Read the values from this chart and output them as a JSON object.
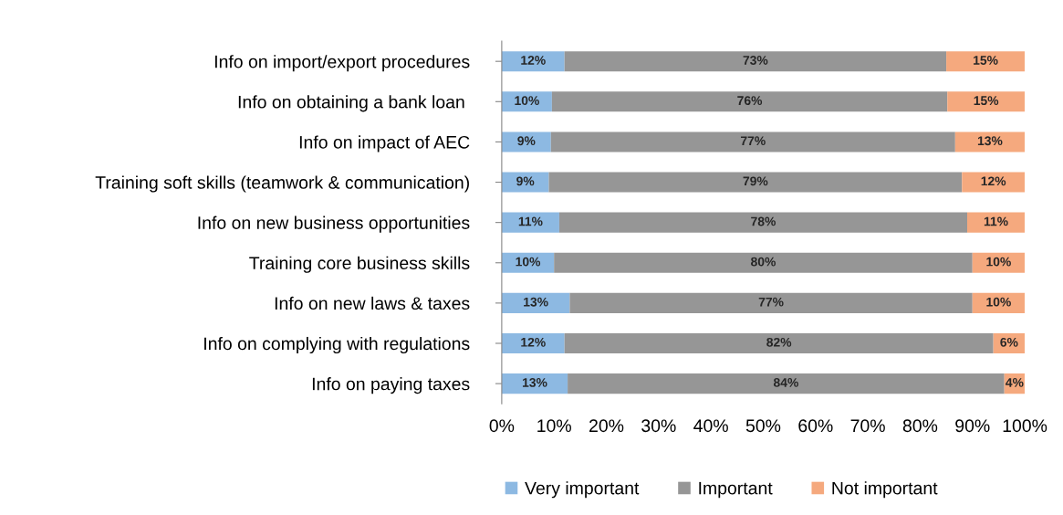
{
  "chart_data": {
    "type": "bar",
    "orientation": "horizontal",
    "stacked": true,
    "categories": [
      "Info on import/export procedures",
      "Info on obtaining a bank loan ",
      "Info on impact of AEC",
      "Training soft skills (teamwork & communication)",
      "Info on new business opportunities",
      "Training core business skills",
      "Info on new laws & taxes",
      "Info on complying with regulations",
      "Info on paying taxes"
    ],
    "series": [
      {
        "name": "Very important",
        "color": "#8db9e2",
        "values": [
          12,
          9.6,
          9.4,
          9,
          11,
          10,
          13,
          12,
          12.6
        ],
        "value_labels": [
          "12%",
          "10%",
          "9%",
          "9%",
          "11%",
          "10%",
          "13%",
          "12%",
          "13%"
        ]
      },
      {
        "name": "Important",
        "color": "#969696",
        "values": [
          73,
          75.6,
          77.3,
          79,
          78,
          80,
          77,
          82,
          83.5
        ],
        "value_labels": [
          "73%",
          "76%",
          "77%",
          "79%",
          "78%",
          "80%",
          "77%",
          "82%",
          "84%"
        ]
      },
      {
        "name": "Not important",
        "color": "#f5a97e",
        "values": [
          15,
          14.8,
          13.3,
          12,
          11,
          10,
          10,
          6,
          3.9
        ],
        "value_labels": [
          "15%",
          "15%",
          "13%",
          "12%",
          "11%",
          "10%",
          "10%",
          "6%",
          "4%"
        ]
      }
    ],
    "xlim": [
      0,
      100
    ],
    "xticks": [
      {
        "value": 0,
        "label": "0%"
      },
      {
        "value": 10,
        "label": "10%"
      },
      {
        "value": 20,
        "label": "20%"
      },
      {
        "value": 30,
        "label": "30%"
      },
      {
        "value": 40,
        "label": "40%"
      },
      {
        "value": 50,
        "label": "50%"
      },
      {
        "value": 60,
        "label": "60%"
      },
      {
        "value": 70,
        "label": "70%"
      },
      {
        "value": 80,
        "label": "80%"
      },
      {
        "value": 90,
        "label": "90%"
      },
      {
        "value": 100,
        "label": "100%"
      }
    ],
    "grid": false,
    "legend": "bottom"
  }
}
